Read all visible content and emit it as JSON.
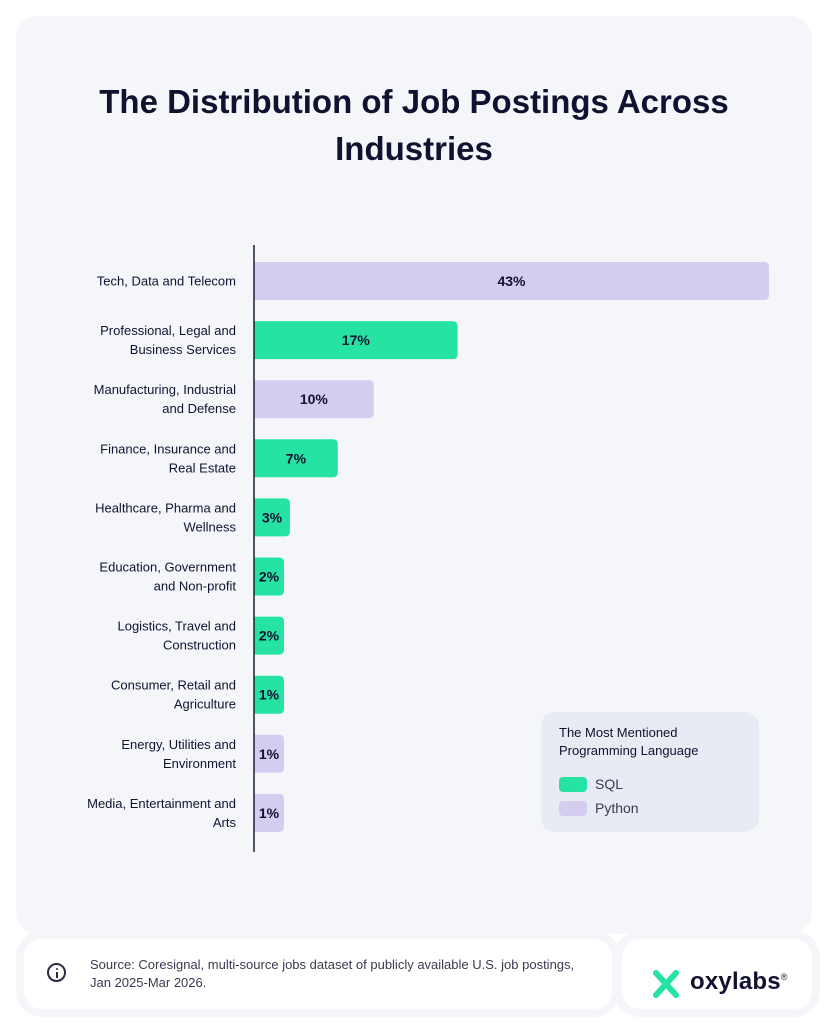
{
  "title": "The Distribution of Job Postings Across Industries",
  "colors": {
    "SQL": "#26e3a3",
    "Python": "#d4cdf0"
  },
  "chart_data": {
    "type": "bar",
    "orientation": "horizontal",
    "title": "The Distribution of Job Postings Across Industries",
    "categories": [
      "Tech, Data and Telecom",
      "Professional, Legal and Business Services",
      "Manufacturing, Industrial and Defense",
      "Finance, Insurance and Real Estate",
      "Healthcare, Pharma and Wellness",
      "Education, Government and Non-profit",
      "Logistics, Travel and Construction",
      "Consumer, Retail and Agriculture",
      "Energy, Utilities and Environment",
      "Media, Entertainment and Arts"
    ],
    "category_lines": [
      [
        "Tech, Data and Telecom"
      ],
      [
        "Professional, Legal and",
        "Business Services"
      ],
      [
        "Manufacturing, Industrial",
        "and Defense"
      ],
      [
        "Finance, Insurance and",
        "Real Estate"
      ],
      [
        "Healthcare, Pharma and",
        "Wellness"
      ],
      [
        "Education, Government",
        "and Non-profit"
      ],
      [
        "Logistics, Travel and",
        "Construction"
      ],
      [
        "Consumer, Retail and",
        "Agriculture"
      ],
      [
        "Energy, Utilities and",
        "Environment"
      ],
      [
        "Media, Entertainment and",
        "Arts"
      ]
    ],
    "values": [
      43,
      17,
      10,
      7,
      3,
      2,
      2,
      1,
      1,
      1
    ],
    "value_labels": [
      "43%",
      "17%",
      "10%",
      "7%",
      "3%",
      "2%",
      "2%",
      "1%",
      "1%",
      "1%"
    ],
    "language": [
      "Python",
      "SQL",
      "Python",
      "SQL",
      "SQL",
      "SQL",
      "SQL",
      "SQL",
      "Python",
      "Python"
    ],
    "legend": {
      "title": "The Most Mentioned Programming Language",
      "placement": "bottom-right",
      "items": [
        "SQL",
        "Python"
      ]
    },
    "grid": false
  },
  "source": "Source: Coresignal, multi-source jobs dataset of publicly available U.S. job postings, Jan 2025-Mar 2026.",
  "brand": {
    "name": "oxylabs",
    "reg": "®"
  }
}
